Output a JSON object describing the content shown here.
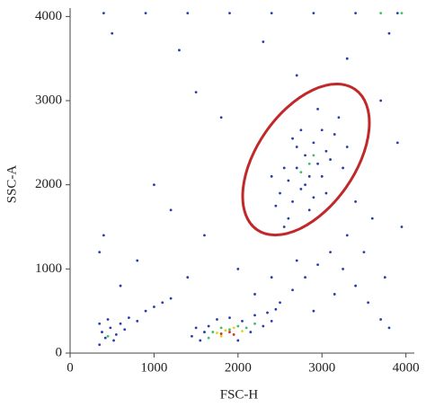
{
  "chart_data": {
    "type": "scatter",
    "x_label": "FSC-H",
    "y_label": "SSC-A",
    "xlim": [
      0,
      4100
    ],
    "ylim": [
      0,
      4100
    ],
    "xticks": [
      0,
      1000,
      2000,
      3000,
      4000
    ],
    "yticks": [
      0,
      1000,
      2000,
      3000,
      4000
    ],
    "grid": false,
    "gate": {
      "cx": 2810,
      "cy": 2300,
      "rx": 1020,
      "ry": 580,
      "angle": -55,
      "color": "#c0282a"
    },
    "series": [
      {
        "color": "#2a3ca6",
        "x": [
          2500,
          2600,
          2700,
          2800,
          2900,
          3000,
          2650,
          2750,
          2850,
          2950,
          3050,
          3150,
          2550,
          2700,
          2800,
          2900,
          3000,
          3100,
          2450,
          2600,
          3200,
          2950,
          2750,
          2400,
          3300,
          2850,
          3050,
          2550,
          3250,
          2650,
          1450,
          1550,
          1650,
          1750,
          1900,
          2050,
          2200,
          2350,
          2450,
          1600,
          2150,
          2300,
          1500,
          2000,
          2400,
          350,
          380,
          420,
          480,
          520,
          600,
          700,
          800,
          900,
          1000,
          1100,
          1200,
          450,
          550,
          650,
          350,
          400,
          350,
          2500,
          2650,
          2800,
          2950,
          3100,
          3250,
          3400,
          3550,
          3700,
          3800,
          3300,
          3500,
          3150,
          2900,
          3600,
          3750,
          3400,
          2700,
          2400,
          2200,
          1200,
          800,
          1500,
          1800,
          2300,
          3300,
          3700,
          3900,
          1000,
          1600,
          2000,
          500,
          1300,
          3800,
          2700,
          600,
          1400,
          3950,
          400,
          900,
          1400,
          1900,
          2400,
          2900,
          3400,
          3900
        ],
        "y": [
          1900,
          2050,
          2200,
          2350,
          2500,
          2650,
          1800,
          1950,
          2100,
          2250,
          2400,
          2600,
          2200,
          2450,
          2000,
          1850,
          2100,
          2300,
          1750,
          1600,
          2800,
          2900,
          2650,
          2100,
          2450,
          1700,
          1900,
          1500,
          2200,
          2550,
          200,
          150,
          320,
          400,
          420,
          380,
          450,
          480,
          520,
          250,
          250,
          320,
          300,
          150,
          380,
          100,
          250,
          180,
          300,
          150,
          350,
          420,
          380,
          500,
          550,
          600,
          650,
          400,
          220,
          280,
          350,
          1400,
          1200,
          600,
          750,
          900,
          1050,
          1200,
          1000,
          800,
          600,
          400,
          300,
          1400,
          1200,
          700,
          500,
          1600,
          900,
          1800,
          1100,
          900,
          700,
          1700,
          1100,
          3100,
          2800,
          3700,
          3500,
          3000,
          2500,
          2000,
          1400,
          1000,
          3800,
          3600,
          3800,
          3300,
          800,
          900,
          1500,
          4040,
          4040,
          4040,
          4040,
          4040,
          4040,
          4040,
          4040
        ]
      },
      {
        "color": "#3cbf6a",
        "x": [
          1700,
          1800,
          1900,
          2000,
          2100,
          1650,
          2200,
          2850,
          2900,
          2750,
          450,
          3950,
          3700
        ],
        "y": [
          250,
          300,
          280,
          320,
          300,
          180,
          350,
          2250,
          2350,
          2150,
          200,
          4040,
          4040
        ]
      },
      {
        "color": "#e6cf1e",
        "x": [
          1750,
          1850,
          1950,
          2050,
          1800
        ],
        "y": [
          240,
          270,
          300,
          260,
          200
        ]
      },
      {
        "color": "#d8301e",
        "x": [
          1800,
          1900,
          1950
        ],
        "y": [
          230,
          250,
          220
        ]
      }
    ]
  }
}
